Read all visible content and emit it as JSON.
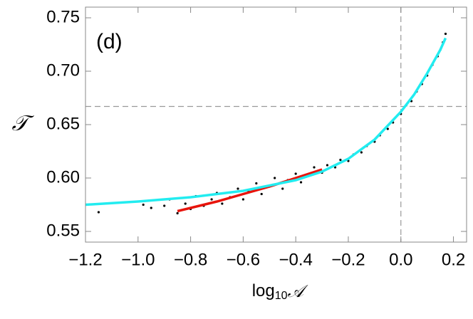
{
  "chart_data": {
    "type": "scatter",
    "annotation": "(d)",
    "xlabel": {
      "base": "log",
      "sub": "10",
      "symbol": "𝒜"
    },
    "ylabel": "𝒯",
    "xlim": [
      -1.2,
      0.25
    ],
    "ylim": [
      0.54,
      0.76
    ],
    "xticks": [
      {
        "value": -1.2,
        "label": "−1.2"
      },
      {
        "value": -1.0,
        "label": "−1.0"
      },
      {
        "value": -0.8,
        "label": "−0.8"
      },
      {
        "value": -0.6,
        "label": "−0.6"
      },
      {
        "value": -0.4,
        "label": "−0.4"
      },
      {
        "value": -0.2,
        "label": "−0.2"
      },
      {
        "value": 0,
        "label": "0.0"
      },
      0.2
    ],
    "yticks": [
      0.55,
      {
        "value": 0.6,
        "label": "0.60"
      },
      0.65,
      {
        "value": 0.7,
        "label": "0.70"
      },
      0.75
    ],
    "reference_lines": {
      "x": 0,
      "y": 0.667
    },
    "series": [
      {
        "type": "scatter",
        "color": "#000000",
        "x": [
          -1.15,
          -0.98,
          -0.95,
          -0.9,
          -0.88,
          -0.85,
          -0.82,
          -0.8,
          -0.78,
          -0.75,
          -0.72,
          -0.7,
          -0.68,
          -0.65,
          -0.62,
          -0.6,
          -0.58,
          -0.55,
          -0.53,
          -0.5,
          -0.48,
          -0.45,
          -0.43,
          -0.4,
          -0.38,
          -0.35,
          -0.33,
          -0.3,
          -0.28,
          -0.25,
          -0.23,
          -0.2,
          -0.18,
          -0.15,
          -0.13,
          -0.1,
          -0.08,
          -0.05,
          -0.03,
          0,
          0.02,
          0.04,
          0.06,
          0.08,
          0.1,
          0.12,
          0.14,
          0.15,
          0.16,
          0.17
        ],
        "values": [
          0.568,
          0.575,
          0.572,
          0.574,
          0.58,
          0.567,
          0.576,
          0.571,
          0.583,
          0.574,
          0.58,
          0.586,
          0.576,
          0.582,
          0.59,
          0.58,
          0.588,
          0.595,
          0.585,
          0.592,
          0.6,
          0.59,
          0.598,
          0.604,
          0.596,
          0.603,
          0.61,
          0.605,
          0.612,
          0.61,
          0.617,
          0.616,
          0.622,
          0.624,
          0.63,
          0.634,
          0.64,
          0.646,
          0.652,
          0.66,
          0.668,
          0.672,
          0.681,
          0.688,
          0.696,
          0.706,
          0.714,
          0.72,
          0.727,
          0.735
        ]
      },
      {
        "type": "line",
        "color": "#e8140c",
        "x": [
          -0.85,
          -0.7,
          -0.6,
          -0.5,
          -0.4,
          -0.3
        ],
        "values": [
          0.569,
          0.578,
          0.585,
          0.592,
          0.6,
          0.608
        ]
      },
      {
        "type": "line",
        "color": "#22ecf0",
        "x": [
          -1.2,
          -1.0,
          -0.8,
          -0.6,
          -0.4,
          -0.3,
          -0.2,
          -0.1,
          0,
          0.05,
          0.1,
          0.15,
          0.17
        ],
        "values": [
          0.575,
          0.578,
          0.582,
          0.588,
          0.598,
          0.606,
          0.618,
          0.636,
          0.662,
          0.678,
          0.698,
          0.72,
          0.731
        ]
      }
    ]
  }
}
